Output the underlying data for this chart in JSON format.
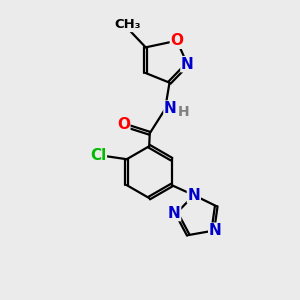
{
  "background_color": "#ebebeb",
  "bond_color": "#000000",
  "atom_colors": {
    "O": "#ff0000",
    "N": "#0000cc",
    "Cl": "#00bb00",
    "H": "#808080",
    "C": "#000000"
  },
  "bond_lw": 1.6,
  "font_size": 11
}
